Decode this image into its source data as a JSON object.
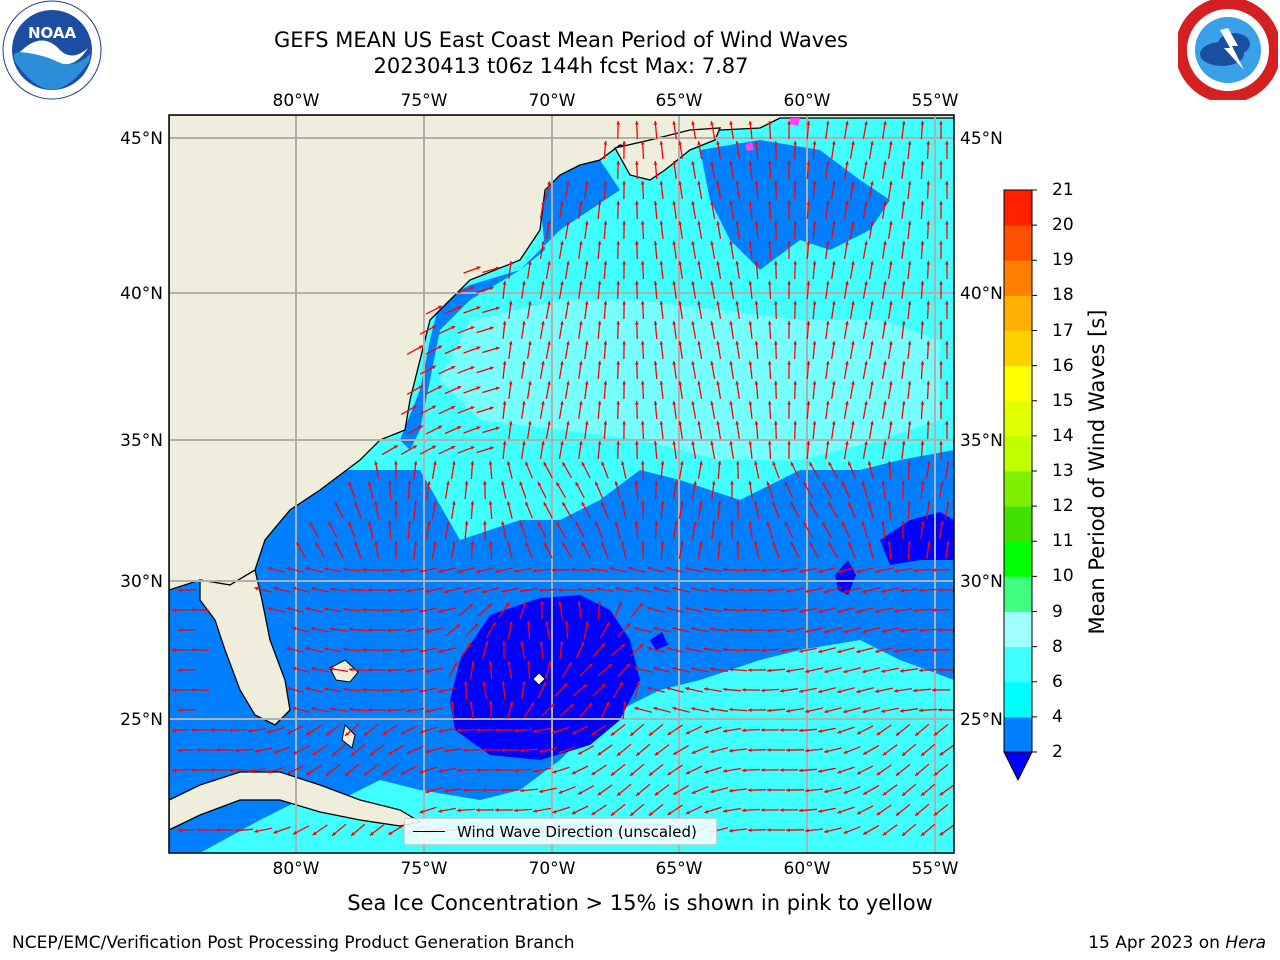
{
  "title": {
    "line1": "GEFS MEAN US East Coast Mean Period of Wind Waves",
    "line2": "20230413 t06z 144h fcst   Max: 7.87"
  },
  "map": {
    "region": "US East Coast / Western North Atlantic",
    "lon_range": [
      -85,
      -54.3
    ],
    "lat_range": [
      20.5,
      46
    ],
    "lon_ticks": [
      "80°W",
      "75°W",
      "70°W",
      "65°W",
      "60°W",
      "55°W"
    ],
    "lat_ticks": [
      "45°N",
      "40°N",
      "35°N",
      "30°N",
      "25°N"
    ],
    "grid": true,
    "land_color": "#efeddb",
    "coast_color": "#000000",
    "arrow_color": "#ff0000",
    "marker_symbol": "diamond"
  },
  "colorbar": {
    "label": "Mean Period of Wind Waves [s]",
    "ticks": [
      "21",
      "20",
      "19",
      "18",
      "17",
      "16",
      "15",
      "14",
      "13",
      "12",
      "11",
      "10",
      "9",
      "8",
      "6",
      "4",
      "2"
    ],
    "levels": [
      2,
      4,
      6,
      8,
      9,
      10,
      11,
      12,
      13,
      14,
      15,
      16,
      17,
      18,
      19,
      20,
      21
    ],
    "colors": [
      "#0080ff",
      "#00ffff",
      "#40ffff",
      "#a0ffff",
      "#40ff80",
      "#00ff00",
      "#40e000",
      "#80f000",
      "#c0ff00",
      "#e0ff00",
      "#ffff00",
      "#ffd000",
      "#ffb000",
      "#ff8000",
      "#ff5000",
      "#ff2000"
    ],
    "under_color": "#0000ff"
  },
  "legend": {
    "label": "Wind Wave Direction (unscaled)"
  },
  "ice_note": "Sea Ice Concentration > 15% is shown in pink to yellow",
  "footer": {
    "left": "NCEP/EMC/Verification Post Processing Product Generation Branch",
    "right_date": "15 Apr 2023 on",
    "right_machine": "Hera"
  },
  "logos": {
    "left": "noaa-logo",
    "right": "nws-logo"
  }
}
